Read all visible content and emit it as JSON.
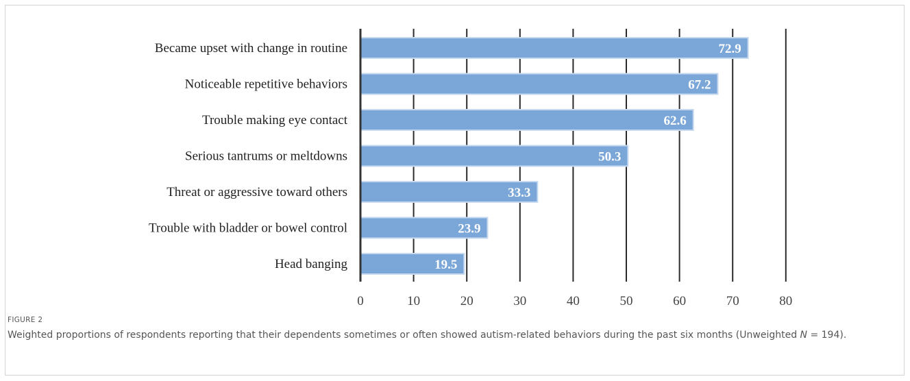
{
  "figure_label": "FIGURE 2",
  "caption": {
    "text_before": "Weighted proportions of respondents reporting that their dependents sometimes or often showed autism-related behaviors during the past six months (Unweighted ",
    "italic": "N",
    "text_after": " = 194)."
  },
  "colors": {
    "bar_fill": "#7ba6d8",
    "bar_edge": "#c6d9ef",
    "grid": "#2a2a2a",
    "axis": "#333333"
  },
  "chart_data": {
    "type": "bar",
    "orientation": "horizontal",
    "categories": [
      "Became upset with change in routine",
      "Noticeable repetitive behaviors",
      "Trouble making eye contact",
      "Serious tantrums or meltdowns",
      "Threat or aggressive toward others",
      "Trouble with bladder or bowel control",
      "Head banging"
    ],
    "values": [
      72.9,
      67.2,
      62.6,
      50.3,
      33.3,
      23.9,
      19.5
    ],
    "value_labels": [
      "72.9",
      "67.2",
      "62.6",
      "50.3",
      "33.3",
      "23.9",
      "19.5"
    ],
    "xlim": [
      0,
      80
    ],
    "xticks": [
      "0",
      "10",
      "20",
      "30",
      "40",
      "50",
      "60",
      "70",
      "80"
    ],
    "grid": true,
    "title": "",
    "xlabel": "",
    "ylabel": ""
  }
}
